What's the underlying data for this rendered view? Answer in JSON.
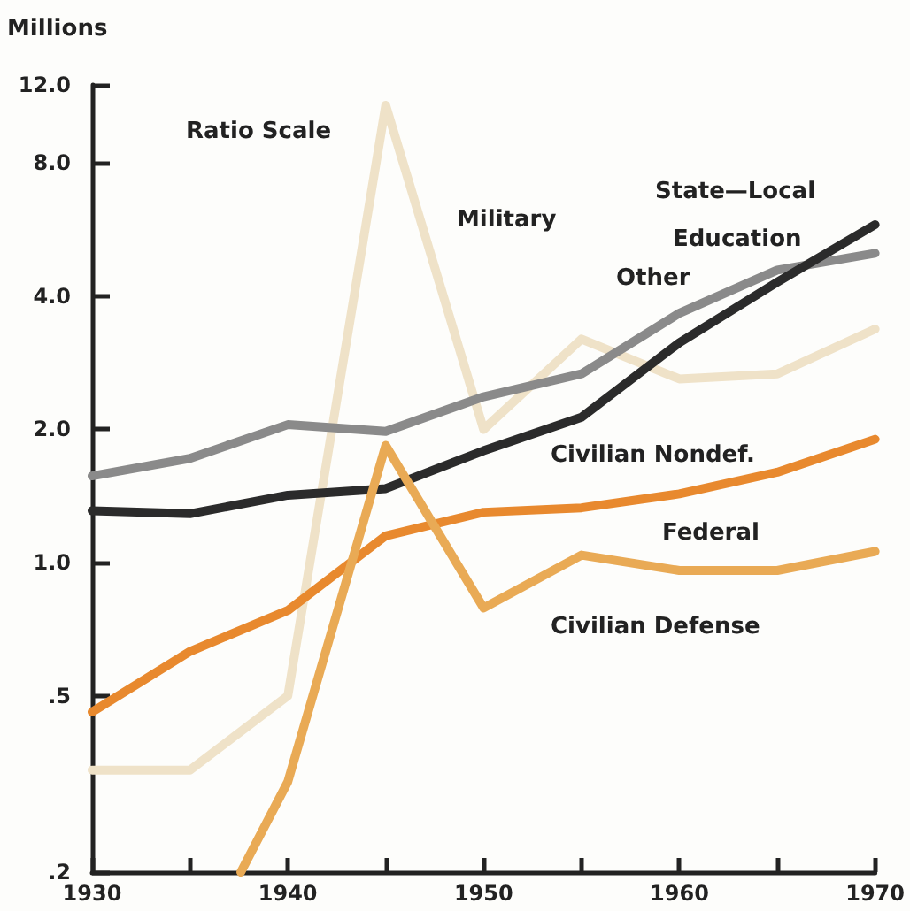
{
  "chart_data": {
    "type": "line",
    "ylabel": "Millions",
    "log": "y",
    "marker": "none",
    "grid": false,
    "annotations": [
      "Ratio Scale",
      "State—Local",
      "Federal"
    ],
    "x": [
      1930,
      1935,
      1940,
      1945,
      1950,
      1955,
      1960,
      1965,
      1970
    ],
    "xlim": [
      1930,
      1970
    ],
    "xticks": [
      1930,
      {
        "value": 1935,
        "label": null
      },
      1940,
      {
        "value": 1945,
        "label": null
      },
      1950,
      {
        "value": 1955,
        "label": null
      },
      1960,
      {
        "value": 1965,
        "label": null
      },
      1970
    ],
    "ylim": [
      0.2,
      12
    ],
    "yticks": [
      {
        "value": 0.2,
        "label": ".2"
      },
      {
        "value": 0.5,
        "label": ".5"
      },
      {
        "value": 1,
        "label": "1.0"
      },
      {
        "value": 2,
        "label": "2.0"
      },
      {
        "value": 4,
        "label": "4.0"
      },
      {
        "value": 8,
        "label": "8.0"
      },
      {
        "value": 12,
        "label": "12.0"
      }
    ],
    "series": [
      {
        "name": "Military",
        "color": "#efe2c8",
        "values": [
          0.34,
          0.34,
          0.5,
          10.8,
          2.0,
          3.2,
          2.6,
          2.67,
          3.37
        ]
      },
      {
        "name": "Other",
        "color": "#8a8a8a",
        "values": [
          1.57,
          1.72,
          2.05,
          1.98,
          2.37,
          2.67,
          3.66,
          4.58,
          5.0
        ]
      },
      {
        "name": "Education",
        "color": "#2b2b2b",
        "values": [
          1.31,
          1.29,
          1.42,
          1.47,
          1.79,
          2.13,
          3.14,
          4.3,
          5.8
        ]
      },
      {
        "name": "Civilian Nondef.",
        "color": "#e8892e",
        "values": [
          0.46,
          0.63,
          0.78,
          1.15,
          1.3,
          1.33,
          1.43,
          1.6,
          1.9
        ]
      },
      {
        "name": "Civilian Defense",
        "color": "#e9aa55",
        "x": [
          1937.6,
          1940,
          1945,
          1950,
          1955,
          1960,
          1965,
          1970
        ],
        "values": [
          0.2,
          0.32,
          1.84,
          0.79,
          1.04,
          0.96,
          0.96,
          1.06
        ]
      }
    ]
  }
}
